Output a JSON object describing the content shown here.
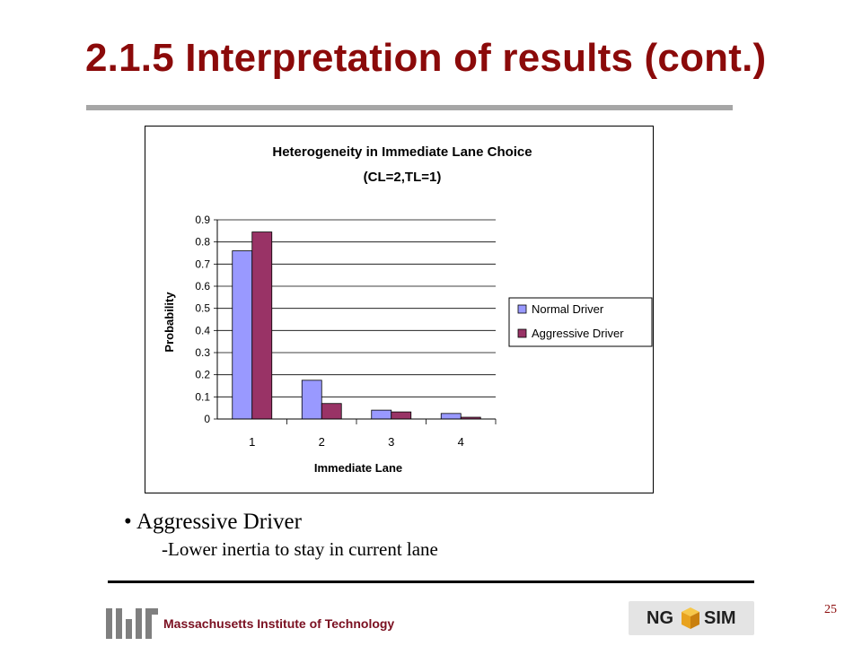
{
  "slide": {
    "title": "2.1.5 Interpretation of results (cont.)",
    "bullet_main": "Aggressive Driver",
    "bullet_sub": "-Lower inertia to stay in current lane",
    "bullet_glyph": "•",
    "page_number": "25",
    "footer_logo_text": "Massachusetts Institute of Technology",
    "logo_ngsim_left": "NG",
    "logo_ngsim_right": "SIM",
    "colors": {
      "title": "#8b0a0a",
      "normal_driver": "#9999ff",
      "aggressive_driver": "#993366"
    }
  },
  "chart_data": {
    "type": "bar",
    "title": "Heterogeneity in Immediate Lane Choice",
    "subtitle": "(CL=2,TL=1)",
    "xlabel": "Immediate Lane",
    "ylabel": "Probability",
    "categories": [
      "1",
      "2",
      "3",
      "4"
    ],
    "series": [
      {
        "name": "Normal Driver",
        "values": [
          0.76,
          0.175,
          0.04,
          0.025
        ]
      },
      {
        "name": "Aggressive Driver",
        "values": [
          0.845,
          0.07,
          0.032,
          0.008
        ]
      }
    ],
    "ylim": [
      0,
      0.9
    ],
    "yticks": [
      "0",
      "0.1",
      "0.2",
      "0.3",
      "0.4",
      "0.5",
      "0.6",
      "0.7",
      "0.8",
      "0.9"
    ],
    "grid": true,
    "legend_position": "right"
  }
}
